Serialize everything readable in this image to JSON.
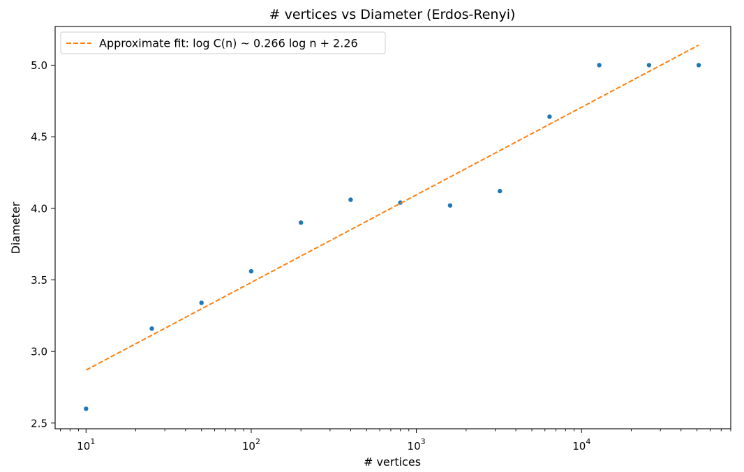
{
  "chart_data": {
    "type": "scatter",
    "title": "# vertices vs Diameter (Erdos-Renyi)",
    "xlabel": "# vertices",
    "ylabel": "Diameter",
    "xscale": "log",
    "xlim": [
      6.5,
      80000
    ],
    "ylim": [
      2.46,
      5.27
    ],
    "grid": false,
    "legend_position": "upper-left",
    "x_ticks": [
      {
        "value": 10,
        "base": "10",
        "exp": "1"
      },
      {
        "value": 100,
        "base": "10",
        "exp": "2"
      },
      {
        "value": 1000,
        "base": "10",
        "exp": "3"
      },
      {
        "value": 10000,
        "base": "10",
        "exp": "4"
      }
    ],
    "y_ticks": [
      {
        "value": 2.5,
        "label": "2.5"
      },
      {
        "value": 3.0,
        "label": "3.0"
      },
      {
        "value": 3.5,
        "label": "3.5"
      },
      {
        "value": 4.0,
        "label": "4.0"
      },
      {
        "value": 4.5,
        "label": "4.5"
      },
      {
        "value": 5.0,
        "label": "5.0"
      }
    ],
    "series": [
      {
        "type": "scatter",
        "color": "#1f77b4",
        "points": [
          {
            "x": 10,
            "y": 2.6
          },
          {
            "x": 25,
            "y": 3.16
          },
          {
            "x": 50,
            "y": 3.34
          },
          {
            "x": 100,
            "y": 3.56
          },
          {
            "x": 200,
            "y": 3.9
          },
          {
            "x": 400,
            "y": 4.06
          },
          {
            "x": 800,
            "y": 4.04
          },
          {
            "x": 1600,
            "y": 4.02
          },
          {
            "x": 3200,
            "y": 4.12
          },
          {
            "x": 6400,
            "y": 4.64
          },
          {
            "x": 12800,
            "y": 5.0
          },
          {
            "x": 25600,
            "y": 5.0
          },
          {
            "x": 51200,
            "y": 5.0
          }
        ]
      },
      {
        "type": "line",
        "name": "Approximate fit: log C(n) ~ 0.266 log n + 2.26",
        "color": "#ff7f0e",
        "dash": "dashed",
        "points": [
          {
            "x": 10,
            "y": 2.87
          },
          {
            "x": 51200,
            "y": 5.14
          }
        ]
      }
    ]
  }
}
